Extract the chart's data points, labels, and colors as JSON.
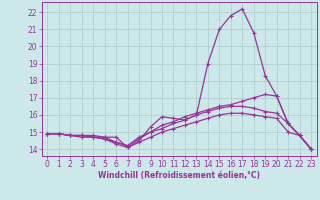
{
  "background_color": "#cde8e8",
  "grid_color": "#aacaca",
  "line_color": "#993399",
  "spine_color": "#993399",
  "xlabel": "Windchill (Refroidissement éolien,°C)",
  "xlim": [
    -0.5,
    23.5
  ],
  "ylim": [
    13.6,
    22.6
  ],
  "yticks": [
    14,
    15,
    16,
    17,
    18,
    19,
    20,
    21,
    22
  ],
  "xticks": [
    0,
    1,
    2,
    3,
    4,
    5,
    6,
    7,
    8,
    9,
    10,
    11,
    12,
    13,
    14,
    15,
    16,
    17,
    18,
    19,
    20,
    21,
    22,
    23
  ],
  "series": [
    {
      "x": [
        0,
        1,
        2,
        3,
        4,
        5,
        6,
        7,
        8,
        9,
        10,
        11,
        12,
        13,
        14,
        15,
        16,
        17,
        18,
        19,
        20,
        21,
        22,
        23
      ],
      "y": [
        14.9,
        14.9,
        14.8,
        14.8,
        14.8,
        14.7,
        14.7,
        14.1,
        14.5,
        15.3,
        15.9,
        15.8,
        15.7,
        16.0,
        19.0,
        21.0,
        21.8,
        22.2,
        20.8,
        18.3,
        17.1,
        15.5,
        14.8,
        14.0
      ]
    },
    {
      "x": [
        0,
        1,
        2,
        3,
        4,
        5,
        6,
        7,
        8,
        9,
        10,
        11,
        12,
        13,
        14,
        15,
        16,
        17,
        18,
        19,
        20,
        21,
        22,
        23
      ],
      "y": [
        14.9,
        14.9,
        14.8,
        14.8,
        14.7,
        14.7,
        14.4,
        14.2,
        14.7,
        15.0,
        15.4,
        15.6,
        15.9,
        16.1,
        16.3,
        16.5,
        16.6,
        16.8,
        17.0,
        17.2,
        17.1,
        15.5,
        14.8,
        14.0
      ]
    },
    {
      "x": [
        0,
        1,
        2,
        3,
        4,
        5,
        6,
        7,
        8,
        9,
        10,
        11,
        12,
        13,
        14,
        15,
        16,
        17,
        18,
        19,
        20,
        21,
        22,
        23
      ],
      "y": [
        14.9,
        14.9,
        14.8,
        14.8,
        14.7,
        14.6,
        14.4,
        14.2,
        14.6,
        15.0,
        15.2,
        15.5,
        15.7,
        16.0,
        16.2,
        16.4,
        16.5,
        16.5,
        16.4,
        16.2,
        16.1,
        15.5,
        14.8,
        14.0
      ]
    },
    {
      "x": [
        0,
        1,
        2,
        3,
        4,
        5,
        6,
        7,
        8,
        9,
        10,
        11,
        12,
        13,
        14,
        15,
        16,
        17,
        18,
        19,
        20,
        21,
        22,
        23
      ],
      "y": [
        14.9,
        14.9,
        14.8,
        14.7,
        14.7,
        14.6,
        14.3,
        14.1,
        14.4,
        14.7,
        15.0,
        15.2,
        15.4,
        15.6,
        15.8,
        16.0,
        16.1,
        16.1,
        16.0,
        15.9,
        15.8,
        15.0,
        14.8,
        14.0
      ]
    }
  ],
  "xlabel_fontsize": 5.5,
  "tick_fontsize": 5.5,
  "linewidth": 0.9,
  "markersize": 2.5
}
